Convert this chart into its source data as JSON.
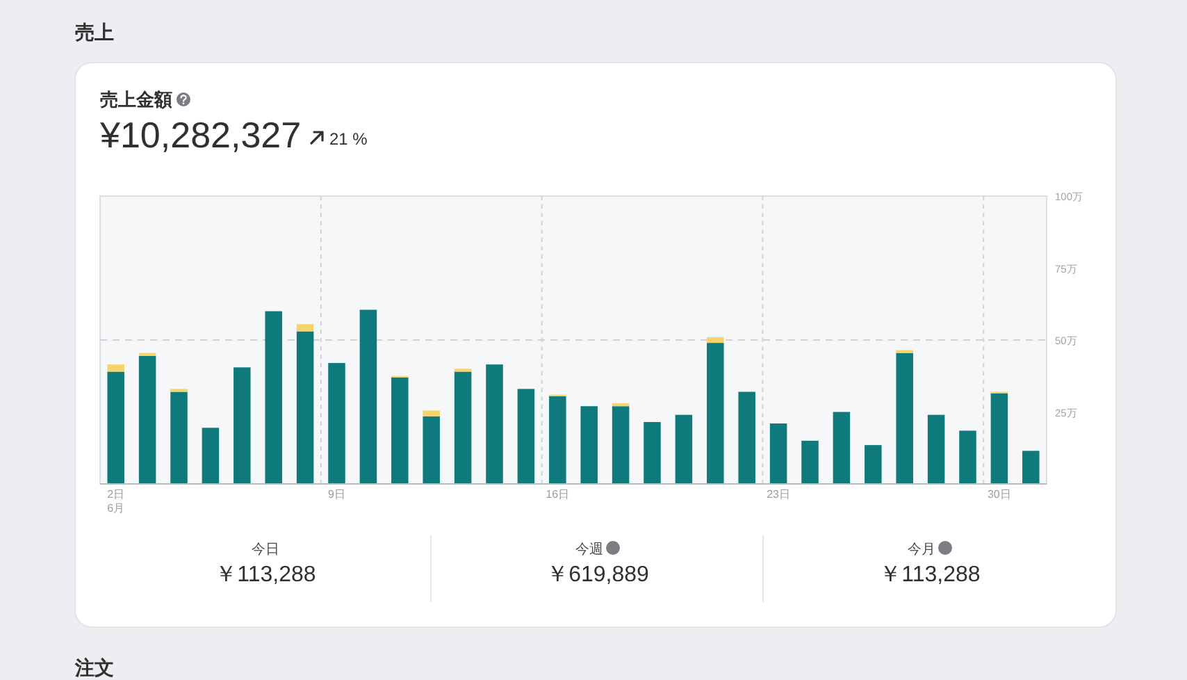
{
  "chart_data": {
    "type": "bar",
    "stacked": true,
    "title": "売上",
    "subtitle": "売上金額",
    "annotations": [
      "¥10,282,327",
      "21 %",
      "今日",
      "￥113,288",
      "今週",
      "￥619,889",
      "今月",
      "￥113,288",
      "6月",
      "注文"
    ],
    "categories": [
      "2日",
      null,
      null,
      null,
      null,
      null,
      null,
      "9日",
      null,
      null,
      null,
      null,
      null,
      null,
      "16日",
      null,
      null,
      null,
      null,
      null,
      null,
      "23日",
      null,
      null,
      null,
      null,
      null,
      null,
      "30日",
      null
    ],
    "series": [
      {
        "color": "#0e7a7b",
        "values": [
          39,
          44.5,
          32,
          19.5,
          40.5,
          60,
          53,
          42,
          60.5,
          37,
          23.5,
          39,
          41.5,
          33,
          30.5,
          27,
          27,
          21.5,
          24,
          49,
          32,
          21,
          15,
          25,
          13.5,
          45.5,
          24,
          18.5,
          31.5,
          11.5
        ]
      },
      {
        "color": "#f4d56c",
        "values": [
          2.5,
          1,
          1,
          null,
          null,
          null,
          2.5,
          null,
          null,
          0.5,
          2,
          1,
          null,
          null,
          0.5,
          null,
          1,
          null,
          null,
          2,
          null,
          null,
          null,
          null,
          null,
          1,
          null,
          null,
          0.5,
          null
        ]
      }
    ],
    "ylim": [
      0,
      100
    ],
    "yticks": [
      {
        "value": 25,
        "label": "25万"
      },
      {
        "value": 50,
        "label": "50万"
      },
      {
        "value": 75,
        "label": "75万"
      },
      {
        "value": 100,
        "label": "100万"
      }
    ],
    "grid": "x",
    "ref_lines": [
      {
        "axis": "y",
        "value": 50,
        "line_style": "dashed"
      }
    ]
  }
}
